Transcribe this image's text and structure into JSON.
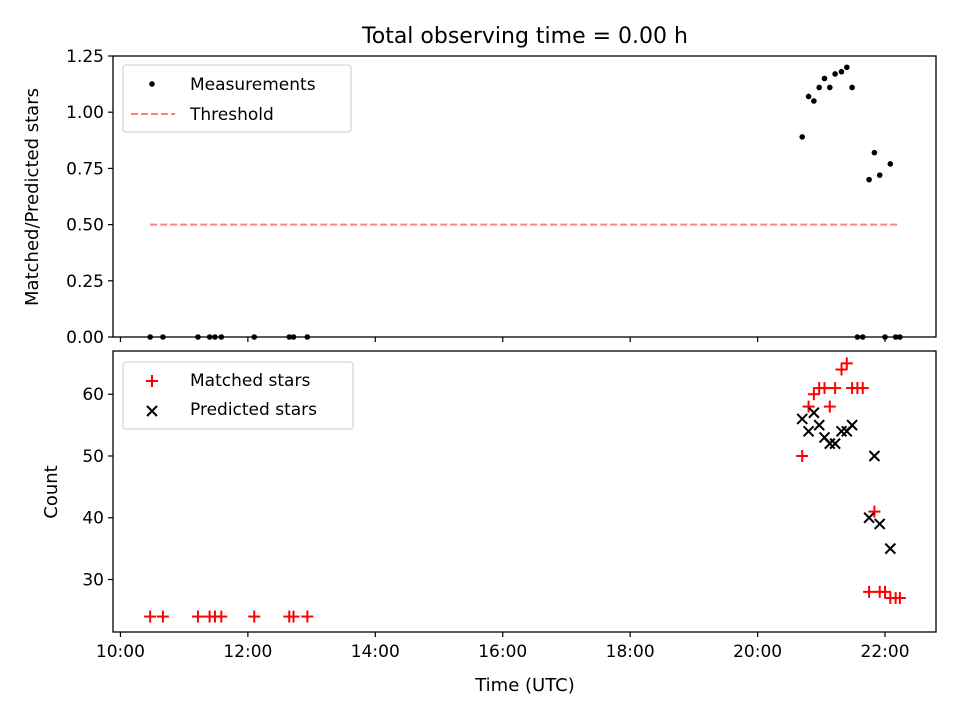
{
  "title": "Total observing time = 0.00 h",
  "xlabel": "Time (UTC)",
  "colors": {
    "measurement": "#000000",
    "threshold": "#ff8080",
    "matched": "#ff0000",
    "predicted": "#000000"
  },
  "chart_data": [
    {
      "type": "scatter",
      "panel": "top",
      "ylabel": "Matched/Predicted stars",
      "xlim": [
        "09:53",
        "22:48"
      ],
      "ylim": [
        0,
        1.25
      ],
      "yticks": [
        "0.00",
        "0.25",
        "0.50",
        "0.75",
        "1.00",
        "1.25"
      ],
      "legend_position": "upper-left",
      "series": [
        {
          "name": "Measurements",
          "marker": "dot",
          "points": [
            [
              "10:28",
              0
            ],
            [
              "10:40",
              0
            ],
            [
              "11:13",
              0
            ],
            [
              "11:24",
              0
            ],
            [
              "11:29",
              0
            ],
            [
              "11:35",
              0
            ],
            [
              "12:06",
              0
            ],
            [
              "12:39",
              0
            ],
            [
              "12:43",
              0
            ],
            [
              "12:56",
              0
            ],
            [
              "20:42",
              0.89
            ],
            [
              "20:48",
              1.07
            ],
            [
              "20:53",
              1.05
            ],
            [
              "20:58",
              1.11
            ],
            [
              "21:03",
              1.15
            ],
            [
              "21:08",
              1.11
            ],
            [
              "21:13",
              1.17
            ],
            [
              "21:19",
              1.18
            ],
            [
              "21:24",
              1.2
            ],
            [
              "21:29",
              1.11
            ],
            [
              "21:34",
              0
            ],
            [
              "21:39",
              0
            ],
            [
              "21:45",
              0.7
            ],
            [
              "21:50",
              0.82
            ],
            [
              "21:55",
              0.72
            ],
            [
              "22:00",
              0
            ],
            [
              "22:05",
              0.77
            ],
            [
              "22:10",
              0
            ],
            [
              "22:14",
              0
            ]
          ]
        },
        {
          "name": "Threshold",
          "style": "dashed",
          "x": [
            "10:28",
            "22:14"
          ],
          "y": [
            0.5,
            0.5
          ]
        }
      ]
    },
    {
      "type": "scatter",
      "panel": "bottom",
      "ylabel": "Count",
      "xlim": [
        "09:53",
        "22:48"
      ],
      "ylim": [
        21.5,
        67
      ],
      "yticks": [
        "30",
        "40",
        "50",
        "60"
      ],
      "xticks": [
        "10:00",
        "12:00",
        "14:00",
        "16:00",
        "18:00",
        "20:00",
        "22:00"
      ],
      "legend_position": "upper-left",
      "series": [
        {
          "name": "Matched stars",
          "marker": "plus",
          "points": [
            [
              "10:28",
              24
            ],
            [
              "10:40",
              24
            ],
            [
              "11:13",
              24
            ],
            [
              "11:24",
              24
            ],
            [
              "11:29",
              24
            ],
            [
              "11:35",
              24
            ],
            [
              "12:06",
              24
            ],
            [
              "12:39",
              24
            ],
            [
              "12:43",
              24
            ],
            [
              "12:56",
              24
            ],
            [
              "20:42",
              50
            ],
            [
              "20:48",
              58
            ],
            [
              "20:53",
              60
            ],
            [
              "20:58",
              61
            ],
            [
              "21:03",
              61
            ],
            [
              "21:08",
              58
            ],
            [
              "21:13",
              61
            ],
            [
              "21:19",
              64
            ],
            [
              "21:24",
              65
            ],
            [
              "21:29",
              61
            ],
            [
              "21:34",
              61
            ],
            [
              "21:39",
              61
            ],
            [
              "21:45",
              28
            ],
            [
              "21:50",
              41
            ],
            [
              "21:55",
              28
            ],
            [
              "22:00",
              28
            ],
            [
              "22:05",
              27
            ],
            [
              "22:10",
              27
            ],
            [
              "22:14",
              27
            ]
          ]
        },
        {
          "name": "Predicted stars",
          "marker": "x",
          "points": [
            [
              "20:42",
              56
            ],
            [
              "20:48",
              54
            ],
            [
              "20:53",
              57
            ],
            [
              "20:58",
              55
            ],
            [
              "21:03",
              53
            ],
            [
              "21:08",
              52
            ],
            [
              "21:13",
              52
            ],
            [
              "21:19",
              54
            ],
            [
              "21:24",
              54
            ],
            [
              "21:29",
              55
            ],
            [
              "21:45",
              40
            ],
            [
              "21:50",
              50
            ],
            [
              "21:55",
              39
            ],
            [
              "22:05",
              35
            ]
          ]
        }
      ]
    }
  ]
}
